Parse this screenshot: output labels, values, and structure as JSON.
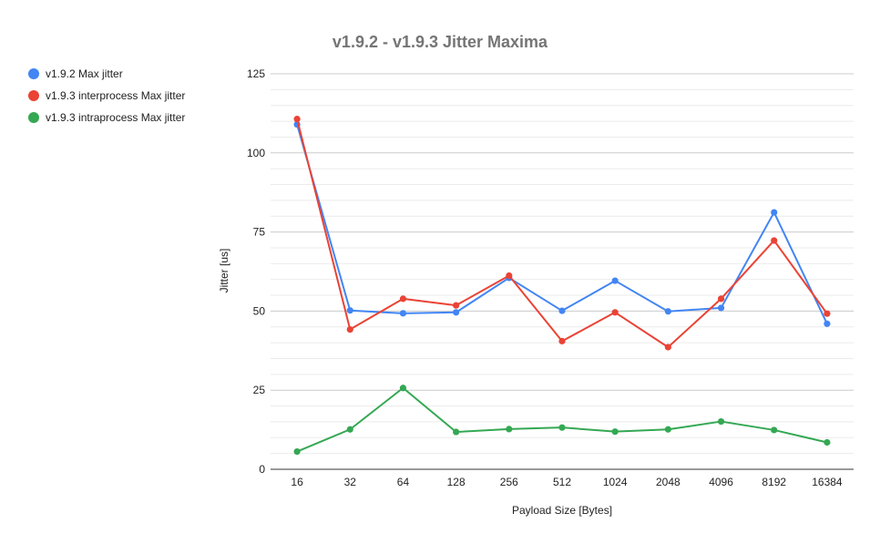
{
  "chart_data": {
    "type": "line",
    "title": "v1.9.2 - v1.9.3 Jitter Maxima",
    "xlabel": "Payload Size [Bytes]",
    "ylabel": "Jitter [us]",
    "categories": [
      "16",
      "32",
      "64",
      "128",
      "256",
      "512",
      "1024",
      "2048",
      "4096",
      "8192",
      "16384"
    ],
    "ylim": [
      0,
      125
    ],
    "yticks": [
      0,
      25,
      50,
      75,
      100,
      125
    ],
    "grid": true,
    "legend_position": "left",
    "series": [
      {
        "name": "v1.9.2 Max jitter",
        "color": "#4285F4",
        "values": [
          109,
          50.2,
          49.3,
          49.6,
          60.5,
          50.1,
          59.6,
          49.9,
          51,
          81.2,
          46
        ]
      },
      {
        "name": "v1.9.3 interprocess Max jitter",
        "color": "#EA4335",
        "values": [
          110.7,
          44.2,
          53.9,
          51.8,
          61.2,
          40.5,
          49.6,
          38.6,
          53.9,
          72.3,
          49.2
        ]
      },
      {
        "name": "v1.9.3 intraprocess Max jitter",
        "color": "#34A853",
        "values": [
          5.6,
          12.6,
          25.7,
          11.8,
          12.7,
          13.2,
          11.9,
          12.6,
          15.1,
          12.4,
          8.5
        ]
      }
    ]
  }
}
